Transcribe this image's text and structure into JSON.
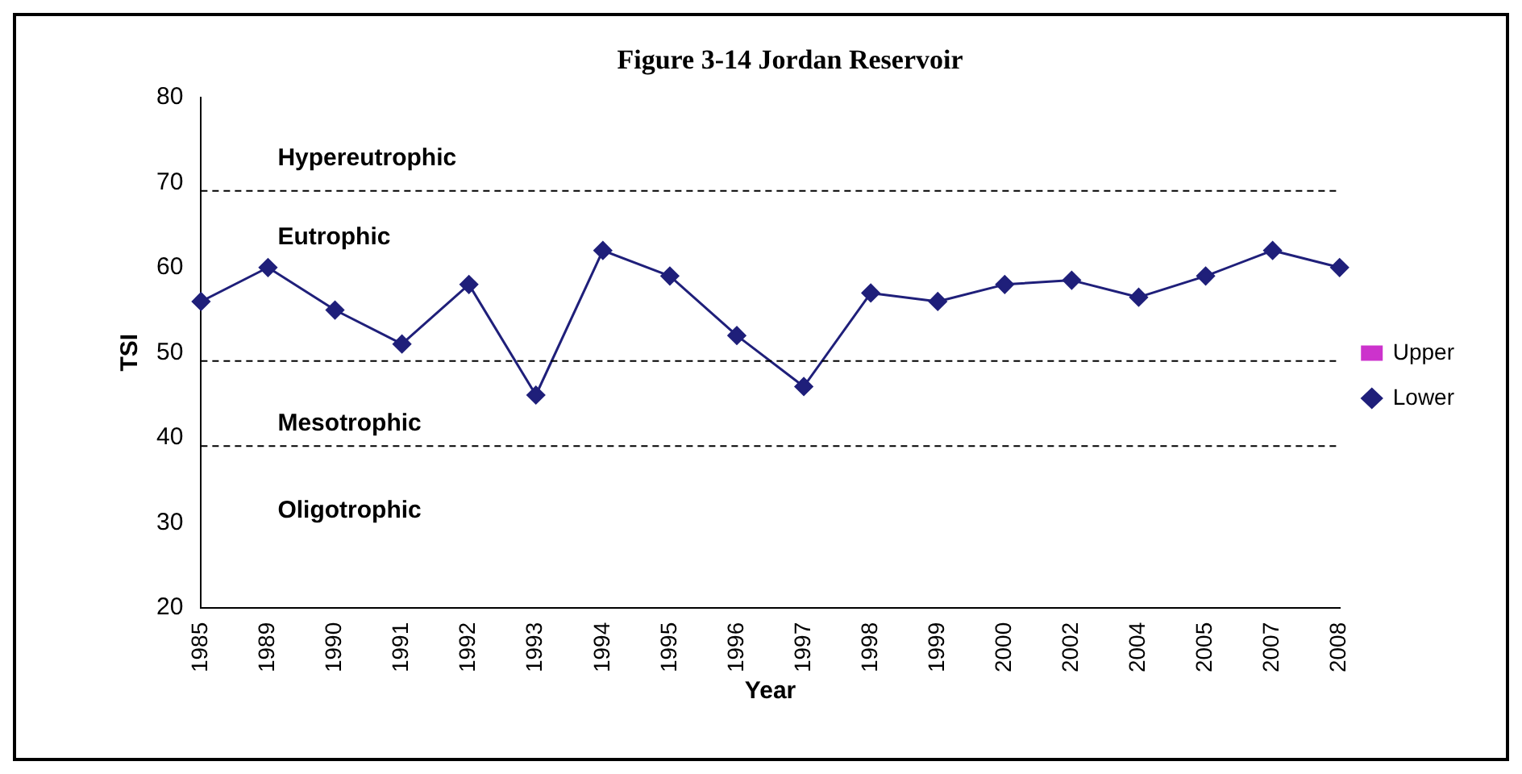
{
  "chart_data": {
    "type": "line",
    "title": "Figure 3-14 Jordan Reservoir",
    "xlabel": "Year",
    "ylabel": "TSI",
    "categories": [
      "1985",
      "1989",
      "1990",
      "1991",
      "1992",
      "1993",
      "1994",
      "1995",
      "1996",
      "1997",
      "1998",
      "1999",
      "2000",
      "2002",
      "2004",
      "2005",
      "2007",
      "2008"
    ],
    "series": [
      {
        "name": "Upper",
        "color": "#cc33cc",
        "marker": "square",
        "values": [
          null,
          null,
          null,
          null,
          null,
          null,
          null,
          null,
          null,
          null,
          null,
          null,
          null,
          null,
          null,
          null,
          null,
          null
        ]
      },
      {
        "name": "Lower",
        "color": "#1f1f7a",
        "values": [
          56,
          60,
          55,
          51,
          58,
          45,
          62,
          59,
          52,
          46,
          57,
          56,
          58,
          58.5,
          56.5,
          59,
          62,
          60
        ]
      }
    ],
    "ylim": [
      20,
      80
    ],
    "yticks": [
      20,
      30,
      40,
      50,
      60,
      70,
      80
    ],
    "ref_lines": [
      {
        "axis": "y",
        "value": 69,
        "color": "#000000",
        "line_style": "dashed"
      },
      {
        "axis": "y",
        "value": 49,
        "color": "#000000",
        "line_style": "dashed"
      },
      {
        "axis": "y",
        "value": 39,
        "color": "#000000",
        "line_style": "dashed"
      }
    ],
    "annotations": [
      "Hypereutrophic",
      "Eutrophic",
      "Mesotrophic",
      "Oligotrophic"
    ],
    "grid": false,
    "legend": "right",
    "marker": "diamond",
    "line_style": "solid"
  }
}
